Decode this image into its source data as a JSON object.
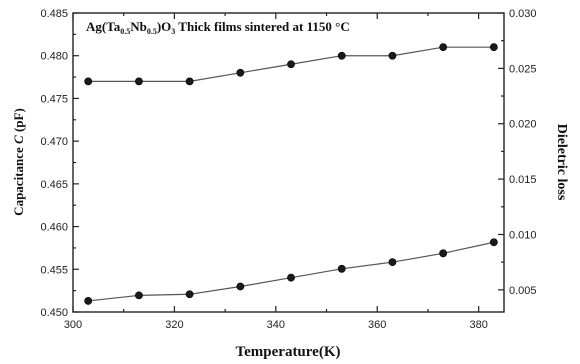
{
  "chart_data": {
    "type": "line",
    "title": {
      "prefix": "Ag(Ta",
      "sub1": "0.5",
      "mid": "Nb",
      "sub2": "0.5",
      "close": ")O",
      "sub3": "3",
      "rest": " Thick films sintered at 1150 °C"
    },
    "xlabel": "Temperature(K)",
    "ylabel_left_prefix": "Capacitance ",
    "ylabel_left_italic": "C",
    "ylabel_left_suffix": " (pF)",
    "ylabel_right": "Dieletric loss",
    "xlim": [
      300,
      385
    ],
    "ylim_left": [
      0.45,
      0.485
    ],
    "ylim_right": [
      0.003,
      0.03
    ],
    "x_ticks": [
      300,
      320,
      340,
      360,
      380
    ],
    "x_tick_labels": [
      "300",
      "320",
      "340",
      "360",
      "380"
    ],
    "y_left_ticks": [
      0.45,
      0.455,
      0.46,
      0.465,
      0.47,
      0.475,
      0.48,
      0.485
    ],
    "y_left_tick_labels": [
      "0.450",
      "0.455",
      "0.460",
      "0.465",
      "0.470",
      "0.475",
      "0.480",
      "0.485"
    ],
    "y_right_ticks": [
      0.005,
      0.01,
      0.015,
      0.02,
      0.025,
      0.03
    ],
    "y_right_tick_labels": [
      "0.005",
      "0.010",
      "0.015",
      "0.020",
      "0.025",
      "0.030"
    ],
    "x": [
      303,
      313,
      323,
      333,
      343,
      353,
      363,
      373,
      383
    ],
    "series": [
      {
        "axis": "left",
        "values": [
          0.477,
          0.477,
          0.477,
          0.478,
          0.479,
          0.48,
          0.48,
          0.481,
          0.481
        ]
      },
      {
        "axis": "right",
        "values": [
          0.004,
          0.0045,
          0.0046,
          0.0053,
          0.0061,
          0.0069,
          0.0075,
          0.0083,
          0.0093
        ]
      }
    ],
    "grid": false,
    "legend": "none"
  }
}
